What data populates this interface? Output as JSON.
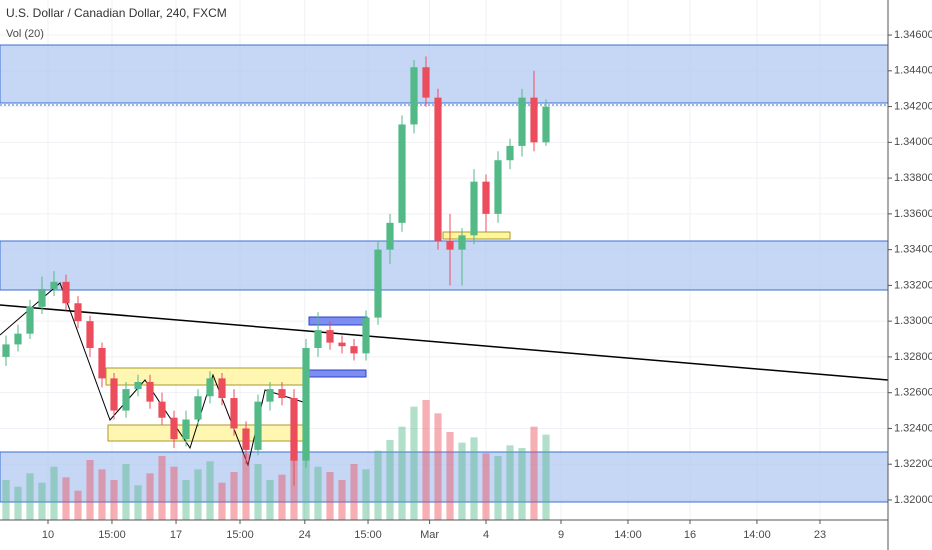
{
  "chart_data": {
    "type": "candlestick",
    "title": "U.S. Dollar / Canadian Dollar, 240, FXCM",
    "subtitle": "Vol (20)",
    "x": [
      0.5,
      1.5,
      2.5,
      3.5,
      4.5,
      5.5,
      6.5,
      7.5,
      8.5,
      9.5,
      10.5,
      11.5,
      12.5,
      13.5,
      14.5,
      15.5,
      16.5,
      17.5,
      18.5,
      19.5,
      20.5,
      21.5,
      22.5,
      23.5,
      24.5,
      25.5,
      26.5,
      27.5,
      28.5,
      29.5,
      30.5,
      31.5,
      32.5,
      33.5,
      34.5,
      35.5,
      36.5,
      37.5,
      38.5,
      39.5,
      40.5,
      41.5,
      42.5,
      43.5,
      44.5,
      45.5
    ],
    "open": [
      1.328,
      1.3287,
      1.3293,
      1.3308,
      1.3318,
      1.3322,
      1.331,
      1.33,
      1.3285,
      1.3268,
      1.325,
      1.3262,
      1.3266,
      1.3255,
      1.3246,
      1.3234,
      1.3245,
      1.3258,
      1.3268,
      1.3257,
      1.324,
      1.3228,
      1.3255,
      1.3262,
      1.3257,
      1.3222,
      1.3285,
      1.3295,
      1.3288,
      1.3286,
      1.3282,
      1.3302,
      1.334,
      1.3355,
      1.341,
      1.3442,
      1.3425,
      1.3345,
      1.334,
      1.3348,
      1.3378,
      1.336,
      1.339,
      1.3398,
      1.3425,
      1.34
    ],
    "high": [
      1.3292,
      1.3298,
      1.3312,
      1.3325,
      1.3328,
      1.3326,
      1.3314,
      1.3303,
      1.3288,
      1.3271,
      1.3266,
      1.327,
      1.327,
      1.326,
      1.325,
      1.325,
      1.3262,
      1.3272,
      1.3271,
      1.3262,
      1.3244,
      1.3259,
      1.3266,
      1.3266,
      1.3262,
      1.329,
      1.3305,
      1.33,
      1.3292,
      1.329,
      1.3306,
      1.3345,
      1.336,
      1.3415,
      1.3446,
      1.3448,
      1.343,
      1.336,
      1.3352,
      1.3385,
      1.3382,
      1.3395,
      1.3402,
      1.343,
      1.344,
      1.3424
    ],
    "low": [
      1.3275,
      1.3283,
      1.329,
      1.3304,
      1.3314,
      1.3306,
      1.3296,
      1.328,
      1.3263,
      1.3245,
      1.3246,
      1.3258,
      1.3251,
      1.3242,
      1.3229,
      1.323,
      1.3241,
      1.3254,
      1.3253,
      1.3236,
      1.322,
      1.3225,
      1.325,
      1.3253,
      1.3208,
      1.3218,
      1.328,
      1.3284,
      1.3282,
      1.3278,
      1.3278,
      1.3298,
      1.3332,
      1.335,
      1.3405,
      1.342,
      1.334,
      1.332,
      1.332,
      1.3343,
      1.335,
      1.3355,
      1.3385,
      1.3392,
      1.3395,
      1.3398
    ],
    "close": [
      1.3287,
      1.3293,
      1.3308,
      1.3318,
      1.3322,
      1.331,
      1.33,
      1.3285,
      1.3268,
      1.325,
      1.3262,
      1.3266,
      1.3255,
      1.3246,
      1.3234,
      1.3245,
      1.3258,
      1.3268,
      1.3257,
      1.324,
      1.3228,
      1.3255,
      1.3262,
      1.3257,
      1.3222,
      1.3285,
      1.3295,
      1.3288,
      1.3286,
      1.3282,
      1.3302,
      1.334,
      1.3355,
      1.341,
      1.3442,
      1.3425,
      1.3345,
      1.334,
      1.3348,
      1.3378,
      1.336,
      1.339,
      1.3398,
      1.3425,
      1.34,
      1.342
    ],
    "volume": [
      30,
      25,
      35,
      28,
      40,
      32,
      22,
      45,
      38,
      30,
      42,
      26,
      35,
      48,
      40,
      30,
      38,
      44,
      28,
      36,
      50,
      42,
      30,
      34,
      60,
      55,
      40,
      36,
      30,
      42,
      38,
      52,
      60,
      70,
      85,
      90,
      80,
      66,
      58,
      62,
      50,
      48,
      56,
      54,
      70,
      64
    ],
    "up_color": "#53b987",
    "down_color": "#eb4d5c",
    "xlim": [
      0,
      74
    ],
    "xticks": [
      {
        "value": 4,
        "label": "10"
      },
      {
        "value": 9.33,
        "label": "15:00"
      },
      {
        "value": 14.67,
        "label": "17"
      },
      {
        "value": 20,
        "label": "15:00"
      },
      {
        "value": 25.4,
        "label": "24"
      },
      {
        "value": 30.67,
        "label": "15:00"
      },
      {
        "value": 35.8,
        "label": "Mar"
      },
      {
        "value": 40.5,
        "label": "4"
      },
      {
        "value": 46.75,
        "label": "9"
      },
      {
        "value": 52.33,
        "label": "14:00"
      },
      {
        "value": 57.5,
        "label": "16"
      },
      {
        "value": 63.08,
        "label": "14:00"
      },
      {
        "value": 68.33,
        "label": "23"
      }
    ],
    "ylim": [
      1.31888,
      1.34796
    ],
    "yticks": [
      {
        "value": 1.32,
        "label": "1.32000"
      },
      {
        "value": 1.322,
        "label": "1.32200"
      },
      {
        "value": 1.324,
        "label": "1.32400"
      },
      {
        "value": 1.326,
        "label": "1.32600"
      },
      {
        "value": 1.328,
        "label": "1.32800"
      },
      {
        "value": 1.33,
        "label": "1.33000"
      },
      {
        "value": 1.332,
        "label": "1.33200"
      },
      {
        "value": 1.334,
        "label": "1.33400"
      },
      {
        "value": 1.336,
        "label": "1.33600"
      },
      {
        "value": 1.338,
        "label": "1.33800"
      },
      {
        "value": 1.34,
        "label": "1.34000"
      },
      {
        "value": 1.342,
        "label": "1.34200"
      },
      {
        "value": 1.344,
        "label": "1.34400"
      },
      {
        "value": 1.346,
        "label": "1.34600"
      }
    ],
    "grid": true
  }
}
